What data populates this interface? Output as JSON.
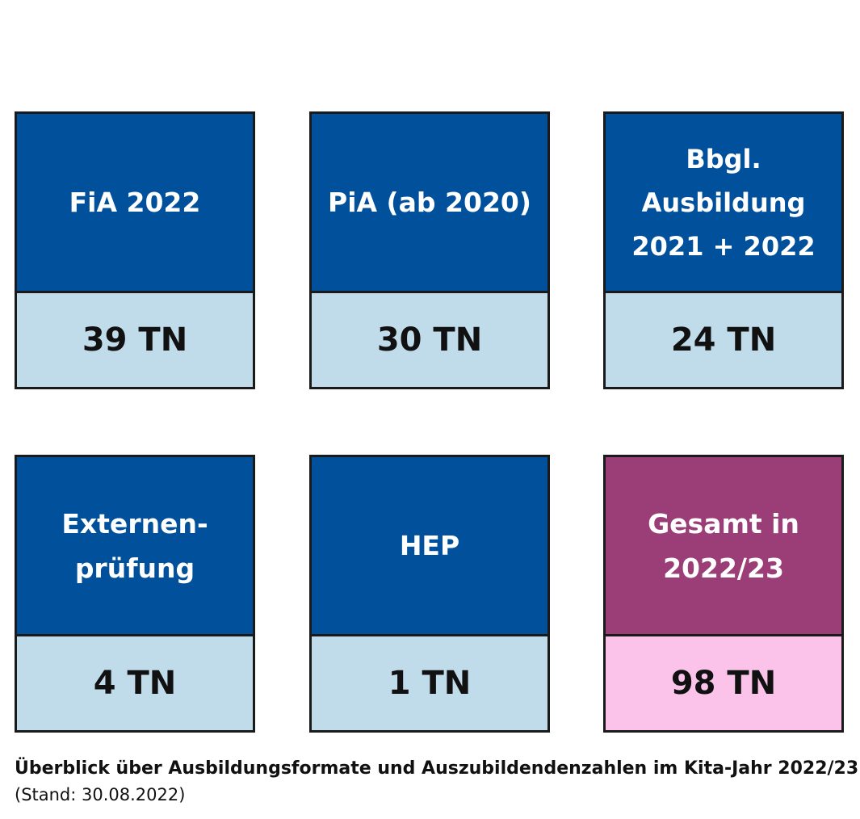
{
  "cards": [
    {
      "label_lines": [
        "FiA 2022"
      ],
      "value": "39 TN",
      "color": "#00509c"
    },
    {
      "label_lines": [
        "PiA (ab 2020)"
      ],
      "value": "30 TN",
      "color": "#00509c"
    },
    {
      "label_lines": [
        "Bbgl.",
        "Ausbildung",
        "2021 + 2022"
      ],
      "value": "24 TN",
      "color": "#00509c"
    },
    {
      "label_lines": [
        "Externen-",
        "prüfung"
      ],
      "value": "4 TN",
      "color": "#00509c"
    },
    {
      "label_lines": [
        "HEP"
      ],
      "value": "1 TN",
      "color": "#00509c"
    },
    {
      "label_lines": [
        "Gesamt in",
        "2022/23"
      ],
      "value": "98 TN",
      "color": "#9b3e78"
    }
  ],
  "caption": {
    "title": "Überblick über Ausbildungsformate und Auszubildendenzahlen im Kita-Jahr 2022/23",
    "subtitle": "(Stand: 30.08.2022)"
  },
  "colors": {
    "primary_header": "#00509c",
    "primary_value_bg": "#c0dbea",
    "total_header": "#9b3e78",
    "total_value_bg": "#fcc3ea"
  }
}
